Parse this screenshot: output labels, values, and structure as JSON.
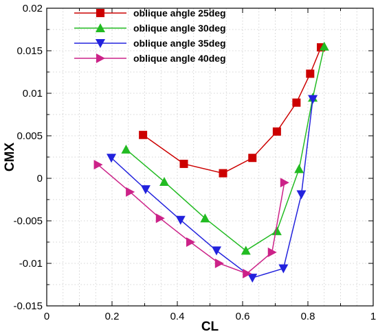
{
  "chart_data": {
    "type": "line",
    "xlabel": "CL",
    "ylabel": "CMX",
    "xlim": [
      0,
      1
    ],
    "ylim": [
      -0.015,
      0.02
    ],
    "x_ticks": [
      0,
      0.2,
      0.4,
      0.6,
      0.8,
      1
    ],
    "x_tick_labels": [
      "0",
      "0.2",
      "0.4",
      "0.6",
      "0.8",
      "1"
    ],
    "y_ticks": [
      -0.015,
      -0.01,
      -0.005,
      0,
      0.005,
      0.01,
      0.015,
      0.02
    ],
    "y_tick_labels": [
      "-0.015",
      "-0.01",
      "-0.005",
      "0",
      "0.005",
      "0.01",
      "0.015",
      "0.02"
    ],
    "grid": true,
    "legend_position": "top-left",
    "series": [
      {
        "name": "oblique angle 25deg",
        "color": "#cc0000",
        "marker": "square",
        "x": [
          0.295,
          0.42,
          0.54,
          0.63,
          0.705,
          0.765,
          0.807,
          0.84
        ],
        "y": [
          0.0051,
          0.0017,
          0.0006,
          0.0024,
          0.0055,
          0.0089,
          0.0123,
          0.0154
        ]
      },
      {
        "name": "oblique angle 30deg",
        "color": "#22bb22",
        "marker": "triangle-up",
        "x": [
          0.243,
          0.36,
          0.485,
          0.61,
          0.705,
          0.773,
          0.815,
          0.85
        ],
        "y": [
          0.0034,
          -0.0004,
          -0.0047,
          -0.0085,
          -0.0062,
          0.0011,
          0.0095,
          0.0155
        ]
      },
      {
        "name": "oblique angle 35deg",
        "color": "#2222dd",
        "marker": "triangle-down",
        "x": [
          0.198,
          0.303,
          0.41,
          0.52,
          0.63,
          0.725,
          0.78,
          0.815
        ],
        "y": [
          0.0024,
          -0.0013,
          -0.0049,
          -0.0085,
          -0.0117,
          -0.0106,
          -0.0019,
          0.0093
        ]
      },
      {
        "name": "oblique angle 40deg",
        "color": "#cc2288",
        "marker": "triangle-right",
        "x": [
          0.157,
          0.255,
          0.347,
          0.44,
          0.528,
          0.613,
          0.69,
          0.728
        ],
        "y": [
          0.0016,
          -0.0016,
          -0.0047,
          -0.0075,
          -0.01,
          -0.0112,
          -0.0087,
          -0.0005
        ]
      }
    ]
  }
}
